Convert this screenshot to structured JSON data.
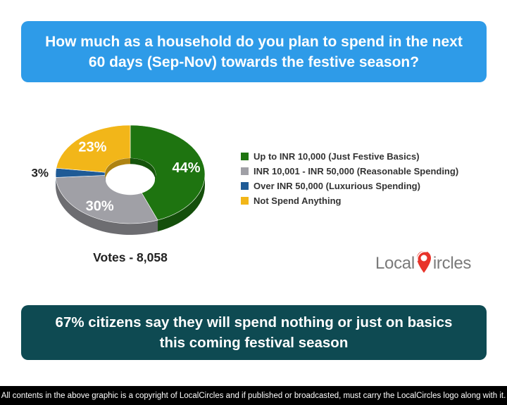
{
  "question": "How much as a household do you plan to spend in the next 60 days (Sep-Nov) towards the festive season?",
  "chart_data": {
    "type": "pie",
    "style": "3d-donut",
    "categories": [
      "Up to INR 10,000 (Just Festive Basics)",
      "INR 10,001 - INR 50,000 (Reasonable Spending)",
      "Over INR 50,000 (Luxurious Spending)",
      "Not Spend Anything"
    ],
    "values": [
      44,
      30,
      3,
      23
    ],
    "labels": [
      "44%",
      "30%",
      "3%",
      "23%"
    ],
    "colors": [
      "#1e7410",
      "#a0a0a6",
      "#1f5b96",
      "#f2b619"
    ],
    "legend_position": "right"
  },
  "votes": "Votes - 8,058",
  "logo": {
    "text_before": "Local",
    "text_after": "ircles",
    "accent_color": "#e8332a"
  },
  "conclusion": "67% citizens say they will spend nothing or just on basics this coming festival season",
  "footer": "All contents in the above graphic is a copyright of LocalCircles and if published or broadcasted, must carry the LocalCircles logo along with it."
}
